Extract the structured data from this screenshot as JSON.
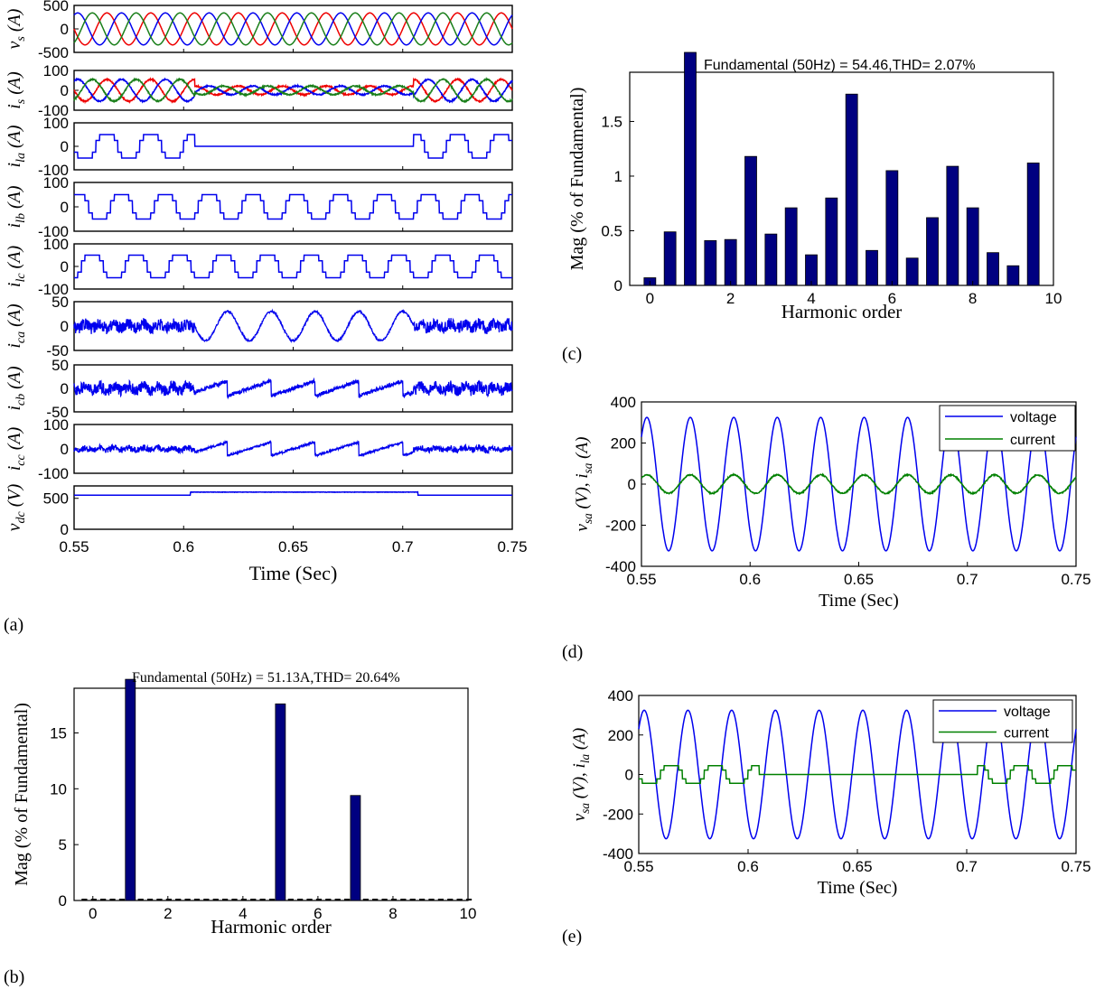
{
  "colors": {
    "blue": "#0000ee",
    "green": "#008000",
    "red": "#ee0000",
    "bar": "#000080",
    "phase_c": "#1a7f1a"
  },
  "panel_labels": {
    "a": "(a)",
    "b": "(b)",
    "c": "(c)",
    "d": "(d)",
    "e": "(e)"
  },
  "chart_data": [
    {
      "id": "a",
      "type": "line",
      "xlabel": "Time (Sec)",
      "xlim": [
        0.55,
        0.75
      ],
      "xticks": [
        "0.55",
        "0.6",
        "0.65",
        "0.7",
        "0.75"
      ],
      "subplots": [
        {
          "ylabel": "v_s (A)",
          "ylim": [
            -500,
            500
          ],
          "yticks": [
            "500",
            "0",
            "-500"
          ],
          "kind": "three-phase",
          "amp": 340,
          "cycles": 10
        },
        {
          "ylabel": "i_s (A)",
          "ylim": [
            -100,
            100
          ],
          "yticks": [
            "100",
            "0",
            "-100"
          ],
          "kind": "three-phase-var",
          "amp": 55,
          "amp_low": 22,
          "low_window": [
            0.605,
            0.705
          ],
          "cycles": 10
        },
        {
          "ylabel": "i_la (A)",
          "ylim": [
            -100,
            100
          ],
          "yticks": [
            "100",
            "0",
            "-100"
          ],
          "kind": "sixstep-off",
          "amp": 50,
          "off_window": [
            0.605,
            0.705
          ],
          "cycles": 10
        },
        {
          "ylabel": "i_lb (A)",
          "ylim": [
            -100,
            100
          ],
          "yticks": [
            "100",
            "0",
            "-100"
          ],
          "kind": "sixstep",
          "amp": 50,
          "shift": 120,
          "cycles": 10
        },
        {
          "ylabel": "i_lc (A)",
          "ylim": [
            -100,
            100
          ],
          "yticks": [
            "100",
            "0",
            "-100"
          ],
          "kind": "sixstep",
          "amp": 50,
          "shift": 240,
          "cycles": 10
        },
        {
          "ylabel": "i_ca (A)",
          "ylim": [
            -50,
            50
          ],
          "yticks": [
            "50",
            "0",
            "-50"
          ],
          "kind": "noise-sine",
          "amp": 12,
          "sine_amp": 30,
          "sine_window": [
            0.605,
            0.705
          ],
          "cycles": 10
        },
        {
          "ylabel": "i_cb (A)",
          "ylim": [
            -50,
            50
          ],
          "yticks": [
            "50",
            "0",
            "-50"
          ],
          "kind": "noise-saw",
          "amp": 12,
          "sine_amp": 20,
          "sine_window": [
            0.605,
            0.705
          ],
          "cycles": 10
        },
        {
          "ylabel": "i_cc (A)",
          "ylim": [
            -100,
            100
          ],
          "yticks": [
            "100",
            "0",
            "-100"
          ],
          "kind": "noise-saw",
          "amp": 12,
          "sine_amp": 35,
          "sine_window": [
            0.605,
            0.705
          ],
          "cycles": 10
        },
        {
          "ylabel": "v_dc (V)",
          "ylim": [
            0,
            700
          ],
          "yticks": [
            "500",
            "0"
          ],
          "kind": "dc",
          "level": 550,
          "level_high": 600,
          "high_window": [
            0.603,
            0.707
          ]
        }
      ]
    },
    {
      "id": "b",
      "type": "bar",
      "title": "Fundamental (50Hz) = 51.13A,THD= 20.64%",
      "xlabel": "Harmonic order",
      "ylabel": "Mag (% of Fundamental)",
      "xlim": [
        -0.5,
        10
      ],
      "ylim": [
        0,
        19
      ],
      "xticks": [
        0,
        2,
        4,
        6,
        8,
        10
      ],
      "yticks": [
        0,
        5,
        10,
        15
      ],
      "x": [
        1,
        5,
        7
      ],
      "values": [
        19.8,
        17.6,
        9.4
      ],
      "baseline_dashes": true
    },
    {
      "id": "c",
      "type": "bar",
      "title": "Fundamental (50Hz) = 54.46,THD= 2.07%",
      "xlabel": "Harmonic order",
      "ylabel": "Mag (% of Fundamental)",
      "xlim": [
        -0.5,
        10
      ],
      "ylim": [
        0,
        1.95
      ],
      "xticks": [
        0,
        2,
        4,
        6,
        8,
        10
      ],
      "yticks": [
        0,
        0.5,
        1,
        1.5
      ],
      "x": [
        0,
        0.5,
        1,
        1.5,
        2,
        2.5,
        3,
        3.5,
        4,
        4.5,
        5,
        5.5,
        6,
        6.5,
        7,
        7.5,
        8,
        8.5,
        9,
        9.5
      ],
      "values": [
        0.07,
        0.49,
        2.2,
        0.41,
        0.42,
        1.18,
        0.47,
        0.71,
        0.28,
        0.8,
        1.75,
        0.32,
        1.05,
        0.25,
        0.62,
        1.09,
        0.71,
        0.3,
        0.18,
        1.12
      ]
    },
    {
      "id": "d",
      "type": "line",
      "xlabel": "Time (Sec)",
      "ylabel": "v_sa (V), i_sa (A)",
      "xlim": [
        0.55,
        0.75
      ],
      "ylim": [
        -400,
        400
      ],
      "xticks": [
        "0.55",
        "0.6",
        "0.65",
        "0.7",
        "0.75"
      ],
      "yticks": [
        "400",
        "200",
        "0",
        "-200",
        "-400"
      ],
      "legend": [
        "voltage",
        "current"
      ],
      "legend_position": "top-right",
      "series": [
        {
          "name": "voltage",
          "amp": 325,
          "cycles": 10,
          "phase_deg": 0
        },
        {
          "name": "current",
          "amp": 45,
          "cycles": 10,
          "phase_deg": 0
        }
      ]
    },
    {
      "id": "e",
      "type": "line",
      "xlabel": "Time (Sec)",
      "ylabel": "v_sa (V), i_la (A)",
      "xlim": [
        0.55,
        0.75
      ],
      "ylim": [
        -400,
        400
      ],
      "xticks": [
        "0.55",
        "0.6",
        "0.65",
        "0.7",
        "0.75"
      ],
      "yticks": [
        "400",
        "200",
        "0",
        "-200",
        "-400"
      ],
      "legend": [
        "voltage",
        "current"
      ],
      "legend_position": "top-right",
      "series": [
        {
          "name": "voltage",
          "amp": 325,
          "cycles": 10,
          "phase_deg": 0
        },
        {
          "name": "current",
          "amp": 45,
          "cycles": 10,
          "kind": "sixstep-off",
          "off_window": [
            0.605,
            0.705
          ]
        }
      ]
    }
  ]
}
